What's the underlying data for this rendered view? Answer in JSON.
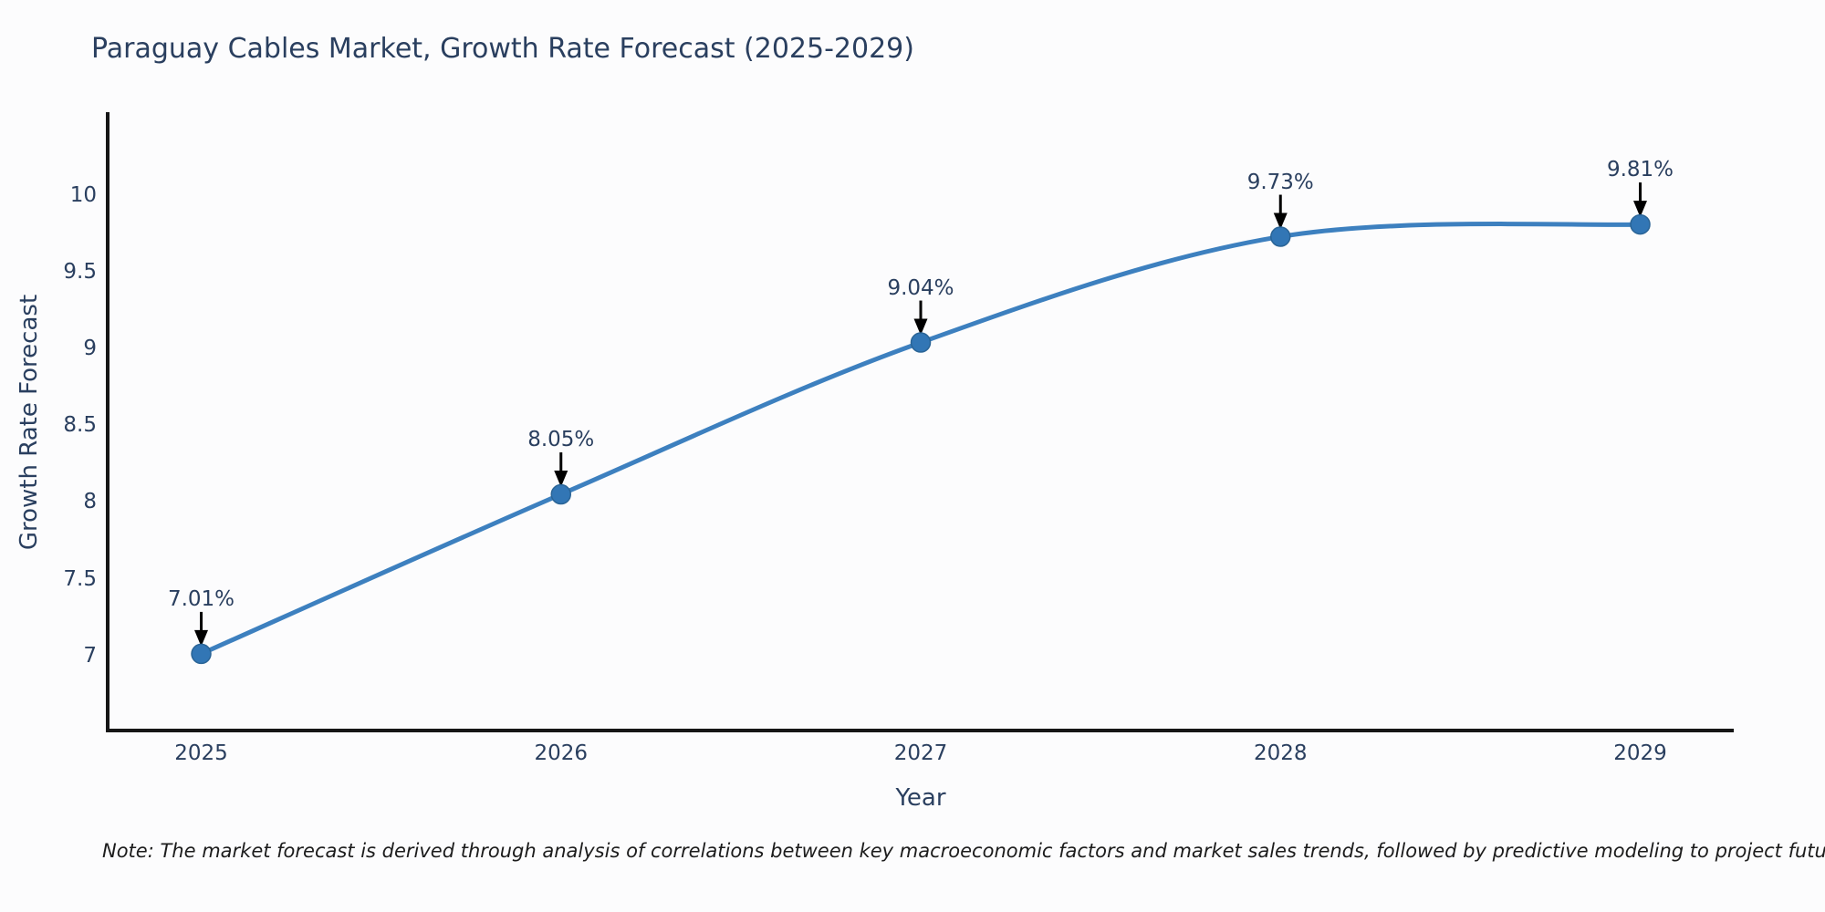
{
  "chart_data": {
    "type": "line",
    "title": "Paraguay Cables Market, Growth Rate Forecast (2025-2029)",
    "xlabel": "Year",
    "ylabel": "Growth Rate Forecast",
    "categories": [
      2025,
      2026,
      2027,
      2028,
      2029
    ],
    "values": [
      7.01,
      8.05,
      9.04,
      9.73,
      9.81
    ],
    "point_labels": [
      "7.01%",
      "8.05%",
      "9.04%",
      "9.73%",
      "9.81%"
    ],
    "x_tick_labels": [
      "2025",
      "2026",
      "2027",
      "2028",
      "2029"
    ],
    "y_ticks": [
      10,
      9.5,
      9,
      8.5,
      8,
      7.5,
      7
    ],
    "xlim": [
      2024.74,
      2029.26
    ],
    "ylim": [
      6.51,
      10.53
    ],
    "grid": false,
    "legend": "none",
    "line_shape": "spline",
    "markers": true
  },
  "note": {
    "text": "Note: The market forecast is derived through analysis of correlations between key macroeconomic factors and market sales trends, followed by predictive modeling to project future sales"
  },
  "colors": {
    "line": "#3d80bf",
    "marker_fill": "#3276b5",
    "marker_stroke": "#2a6496",
    "axis": "#161616",
    "text": "#2a3f5f",
    "arrow": "#000000",
    "note_text": "#1c1c1c",
    "background": "#fcfcfd"
  }
}
